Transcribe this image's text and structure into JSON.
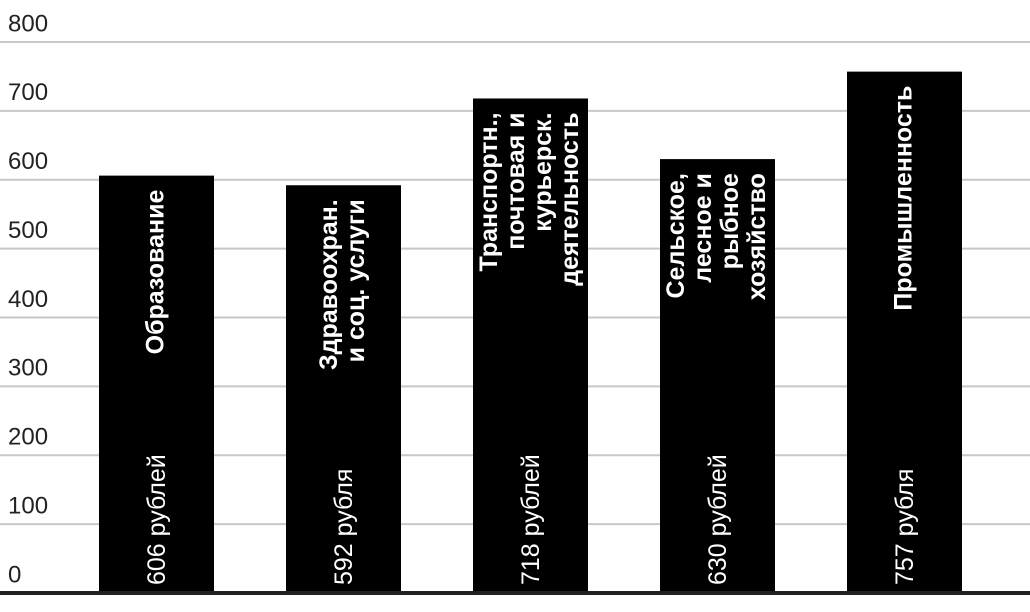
{
  "chart_data": {
    "type": "bar",
    "categories": [
      "Образование",
      "Здравоохран.\nи соц. услуги",
      "Транспортн.,\nпочтовая и\nкурьерск.\nдеятельность",
      "Сельское,\nлесное и\nрыбное\nхозяйство",
      "Промышленность"
    ],
    "values": [
      606,
      592,
      718,
      630,
      757
    ],
    "value_labels": [
      "606 рублей",
      "592 рубля",
      "718 рублей",
      "630 рублей",
      "757 рубля"
    ],
    "color": "#000000",
    "ylim": [
      0,
      800
    ],
    "yticks": [
      0,
      100,
      200,
      300,
      400,
      500,
      600,
      700,
      800
    ],
    "grid": true
  }
}
